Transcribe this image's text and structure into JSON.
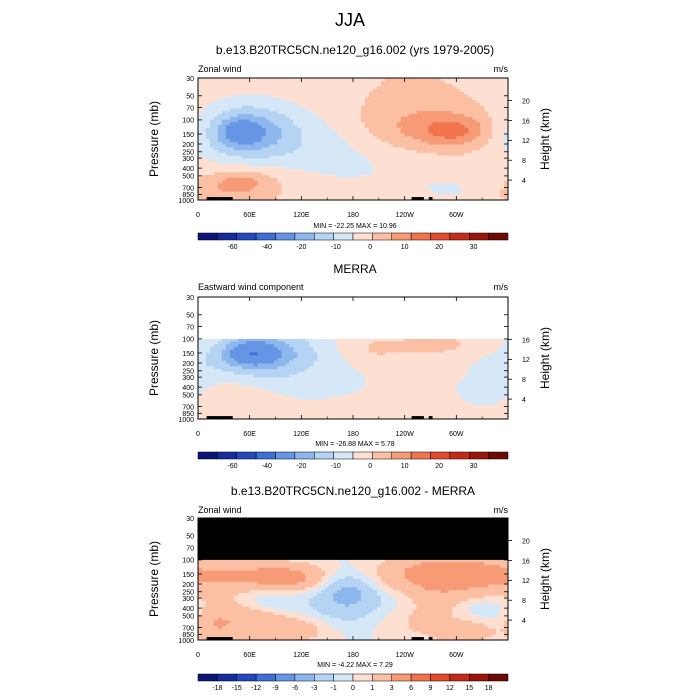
{
  "figure": {
    "title": "JJA"
  },
  "colors": {
    "zero": "#ffffff",
    "pos": [
      "#fde0d2",
      "#fbbfa3",
      "#f79a76",
      "#f0744e",
      "#e24a2a",
      "#c42a16",
      "#9b1409",
      "#6e0903"
    ],
    "neg": [
      "#d6e8f8",
      "#b5d3f2",
      "#8db7ec",
      "#6595e4",
      "#3e6fd6",
      "#2448bf",
      "#152b9b",
      "#0b1577"
    ],
    "black": "#000000"
  },
  "chart_data": [
    {
      "type": "heatmap",
      "title": "b.e13.B20TRC5CN.ne120_g16.002 (yrs 1979-2005)",
      "left_label": "Zonal wind",
      "right_label": "m/s",
      "xlabel": "",
      "ylabel": "Pressure (mb)",
      "y2label": "Height (km)",
      "x_ticks": [
        "0",
        "60E",
        "120E",
        "180",
        "120W",
        "60W"
      ],
      "x_range": [
        0,
        360
      ],
      "y_ticks": [
        "30",
        "50",
        "70",
        "100",
        "150",
        "200",
        "250",
        "300",
        "400",
        "500",
        "700",
        "850",
        "1000"
      ],
      "y_range": [
        30,
        1000
      ],
      "y_scale": "log",
      "y2_ticks": [
        "4",
        "8",
        "12",
        "16",
        "20"
      ],
      "stats": "MIN = -22.25  MAX = 10.96",
      "min": -22.25,
      "max": 10.96,
      "colorbar_levels": [
        -70,
        -60,
        -50,
        -40,
        -30,
        -20,
        -15,
        -10,
        -5,
        0,
        5,
        10,
        15,
        20,
        25,
        30,
        35
      ],
      "colorbar_labels": [
        "-60",
        "-40",
        "-20",
        "-10",
        "0",
        "10",
        "20",
        "30"
      ],
      "features": [
        {
          "kind": "blob",
          "lon": 55,
          "p": 135,
          "rlon": 60,
          "rlogp": 0.38,
          "amp": -8
        },
        {
          "kind": "blob",
          "lon": 55,
          "p": 140,
          "rlon": 32,
          "rlogp": 0.2,
          "amp": -12
        },
        {
          "kind": "blob",
          "lon": 48,
          "p": 140,
          "rlon": 14,
          "rlogp": 0.09,
          "amp": -8
        },
        {
          "kind": "blob",
          "lon": 150,
          "p": 180,
          "rlon": 60,
          "rlogp": 0.3,
          "amp": -4
        },
        {
          "kind": "blob",
          "lon": 185,
          "p": 500,
          "rlon": 170,
          "rlogp": 0.35,
          "amp": -4
        },
        {
          "kind": "blob",
          "lon": 305,
          "p": 700,
          "rlon": 40,
          "rlogp": 0.25,
          "amp": -3
        },
        {
          "kind": "blob",
          "lon": 265,
          "p": 125,
          "rlon": 60,
          "rlogp": 0.22,
          "amp": 8
        },
        {
          "kind": "blob",
          "lon": 300,
          "p": 140,
          "rlon": 28,
          "rlogp": 0.13,
          "amp": 8
        },
        {
          "kind": "blob",
          "lon": 318,
          "p": 390,
          "rlon": 35,
          "rlogp": 0.15,
          "amp": 3
        },
        {
          "kind": "blob",
          "lon": 60,
          "p": 600,
          "rlon": 50,
          "rlogp": 0.2,
          "amp": 6
        },
        {
          "kind": "blob",
          "lon": 50,
          "p": 600,
          "rlon": 22,
          "rlogp": 0.1,
          "amp": 6
        },
        {
          "kind": "blob",
          "lon": 15,
          "p": 850,
          "rlon": 25,
          "rlogp": 0.12,
          "amp": 3
        }
      ]
    },
    {
      "type": "heatmap",
      "title": "MERRA",
      "left_label": "Eastward wind component",
      "right_label": "m/s",
      "xlabel": "",
      "ylabel": "Pressure (mb)",
      "y2label": "Height (km)",
      "x_ticks": [
        "0",
        "60E",
        "120E",
        "180",
        "120W",
        "60W"
      ],
      "x_range": [
        0,
        360
      ],
      "y_ticks": [
        "30",
        "50",
        "70",
        "100",
        "150",
        "200",
        "250",
        "300",
        "400",
        "500",
        "700",
        "850",
        "1000"
      ],
      "y_range": [
        30,
        1000
      ],
      "y_scale": "log",
      "y2_ticks": [
        "4",
        "8",
        "12",
        "16"
      ],
      "data_top_p": 100,
      "stats": "MIN = -26.88  MAX =  5.78",
      "min": -26.88,
      "max": 5.78,
      "colorbar_levels": [
        -70,
        -60,
        -50,
        -40,
        -30,
        -20,
        -15,
        -10,
        -5,
        0,
        5,
        10,
        15,
        20,
        25,
        30,
        35
      ],
      "colorbar_labels": [
        "-60",
        "-40",
        "-20",
        "-10",
        "0",
        "10",
        "20",
        "30"
      ],
      "features": [
        {
          "kind": "blob",
          "lon": 75,
          "p": 150,
          "rlon": 75,
          "rlogp": 0.35,
          "amp": -8
        },
        {
          "kind": "blob",
          "lon": 70,
          "p": 150,
          "rlon": 38,
          "rlogp": 0.18,
          "amp": -12
        },
        {
          "kind": "blob",
          "lon": 62,
          "p": 150,
          "rlon": 18,
          "rlogp": 0.1,
          "amp": -10
        },
        {
          "kind": "blob",
          "lon": 210,
          "p": 500,
          "rlon": 150,
          "rlogp": 0.45,
          "amp": -4
        },
        {
          "kind": "blob",
          "lon": 340,
          "p": 350,
          "rlon": 30,
          "rlogp": 0.3,
          "amp": -3
        },
        {
          "kind": "blob",
          "lon": 200,
          "p": 140,
          "rlon": 25,
          "rlogp": 0.12,
          "amp": 3.5
        },
        {
          "kind": "blob",
          "lon": 305,
          "p": 125,
          "rlon": 55,
          "rlogp": 0.12,
          "amp": 3.5
        },
        {
          "kind": "blob",
          "lon": 45,
          "p": 550,
          "rlon": 30,
          "rlogp": 0.25,
          "amp": 3
        },
        {
          "kind": "blob",
          "lon": 270,
          "p": 250,
          "rlon": 30,
          "rlogp": 0.1,
          "amp": 3
        }
      ]
    },
    {
      "type": "heatmap",
      "title": "b.e13.B20TRC5CN.ne120_g16.002 - MERRA",
      "left_label": "Zonal wind",
      "right_label": "m/s",
      "xlabel": "",
      "ylabel": "Pressure (mb)",
      "y2label": "Height (km)",
      "x_ticks": [
        "0",
        "60E",
        "120E",
        "180",
        "120W",
        "60W"
      ],
      "x_range": [
        0,
        360
      ],
      "y_ticks": [
        "30",
        "50",
        "70",
        "100",
        "150",
        "200",
        "250",
        "300",
        "400",
        "500",
        "700",
        "850",
        "1000"
      ],
      "y_range": [
        30,
        1000
      ],
      "y_scale": "log",
      "y2_ticks": [
        "4",
        "8",
        "12",
        "16",
        "20"
      ],
      "masked_above_p": 100,
      "stats": "MIN = -4.22  MAX =  7.29",
      "min": -4.22,
      "max": 7.29,
      "colorbar_levels": [
        -21,
        -18,
        -15,
        -12,
        -9,
        -6,
        -3,
        -1,
        0,
        1,
        3,
        6,
        9,
        12,
        15,
        18,
        21
      ],
      "colorbar_labels": [
        "-18",
        "-15",
        "-12",
        "-9",
        "-6",
        "-3",
        "-1",
        "0",
        "1",
        "3",
        "6",
        "9",
        "12",
        "15",
        "18"
      ],
      "features": [
        {
          "kind": "blob",
          "lon": 175,
          "p": 280,
          "rlon": 38,
          "rlogp": 0.28,
          "amp": -2.5
        },
        {
          "kind": "blob",
          "lon": 175,
          "p": 260,
          "rlon": 20,
          "rlogp": 0.14,
          "amp": -2.5
        },
        {
          "kind": "blob",
          "lon": 60,
          "p": 160,
          "rlon": 45,
          "rlogp": 0.12,
          "amp": 2.5
        },
        {
          "kind": "blob",
          "lon": 110,
          "p": 170,
          "rlon": 30,
          "rlogp": 0.12,
          "amp": 3
        },
        {
          "kind": "blob",
          "lon": 280,
          "p": 180,
          "rlon": 75,
          "rlogp": 0.22,
          "amp": 3.5
        },
        {
          "kind": "blob",
          "lon": 300,
          "p": 140,
          "rlon": 38,
          "rlogp": 0.1,
          "amp": 2.5
        },
        {
          "kind": "blob",
          "lon": 60,
          "p": 550,
          "rlon": 30,
          "rlogp": 0.16,
          "amp": 2.5
        },
        {
          "kind": "blob",
          "lon": 110,
          "p": 750,
          "rlon": 35,
          "rlogp": 0.12,
          "amp": 2
        },
        {
          "kind": "blob",
          "lon": 20,
          "p": 700,
          "rlon": 15,
          "rlogp": 0.2,
          "amp": 2
        },
        {
          "kind": "blob",
          "lon": 250,
          "p": 500,
          "rlon": 40,
          "rlogp": 0.2,
          "amp": 1.5
        },
        {
          "kind": "blob",
          "lon": 310,
          "p": 800,
          "rlon": 25,
          "rlogp": 0.1,
          "amp": 2
        },
        {
          "kind": "blob",
          "lon": 80,
          "p": 330,
          "rlon": 25,
          "rlogp": 0.15,
          "amp": -1.5
        },
        {
          "kind": "blob",
          "lon": 235,
          "p": 330,
          "rlon": 25,
          "rlogp": 0.15,
          "amp": -1.5
        },
        {
          "kind": "blob",
          "lon": 330,
          "p": 380,
          "rlon": 25,
          "rlogp": 0.12,
          "amp": -1.5
        }
      ]
    }
  ]
}
